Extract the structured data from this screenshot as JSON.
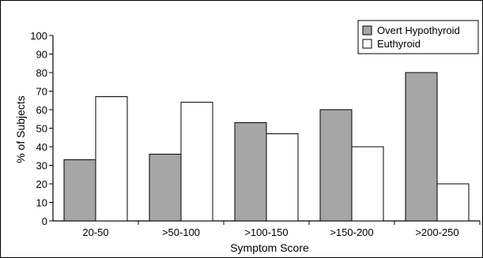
{
  "chart_data": {
    "type": "bar",
    "title": "",
    "xlabel": "Symptom Score",
    "ylabel": "% of Subjects",
    "categories": [
      "20-50",
      ">50-100",
      ">100-150",
      ">150-200",
      ">200-250"
    ],
    "series": [
      {
        "name": "Overt Hypothyroid",
        "values": [
          33,
          36,
          53,
          60,
          80
        ],
        "color": "#a6a6a6"
      },
      {
        "name": "Euthyroid",
        "values": [
          67,
          64,
          47,
          40,
          20
        ],
        "color": "#ffffff"
      }
    ],
    "ylim": [
      0,
      100
    ],
    "yticks": [
      0,
      10,
      20,
      30,
      40,
      50,
      60,
      70,
      80,
      90,
      100
    ],
    "grid": false,
    "legend_position": "top-right"
  }
}
